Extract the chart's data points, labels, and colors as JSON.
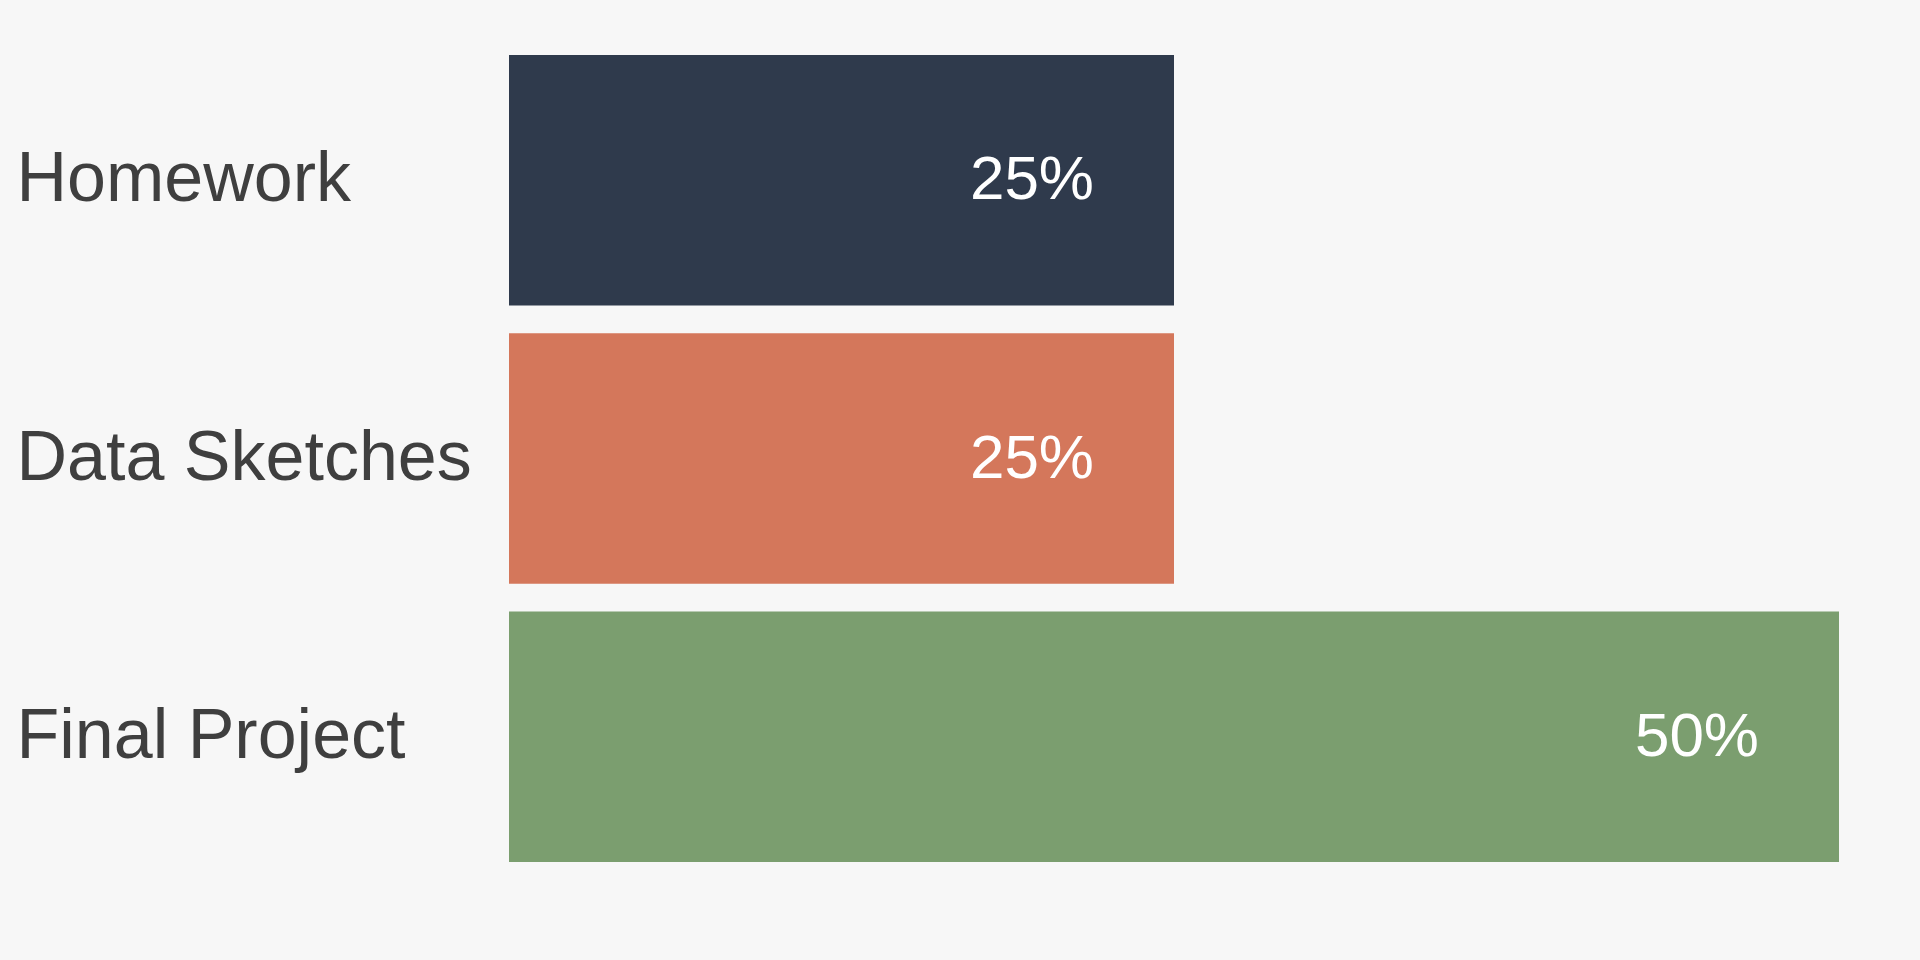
{
  "chart_data": {
    "type": "bar",
    "orientation": "horizontal",
    "categories": [
      "Homework",
      "Data Sketches",
      "Final Project"
    ],
    "values": [
      25,
      25,
      50
    ],
    "colors": [
      "#2f3a4c",
      "#d4775b",
      "#7b9e6f"
    ],
    "value_labels": [
      "25%",
      "25%",
      "50%"
    ]
  }
}
